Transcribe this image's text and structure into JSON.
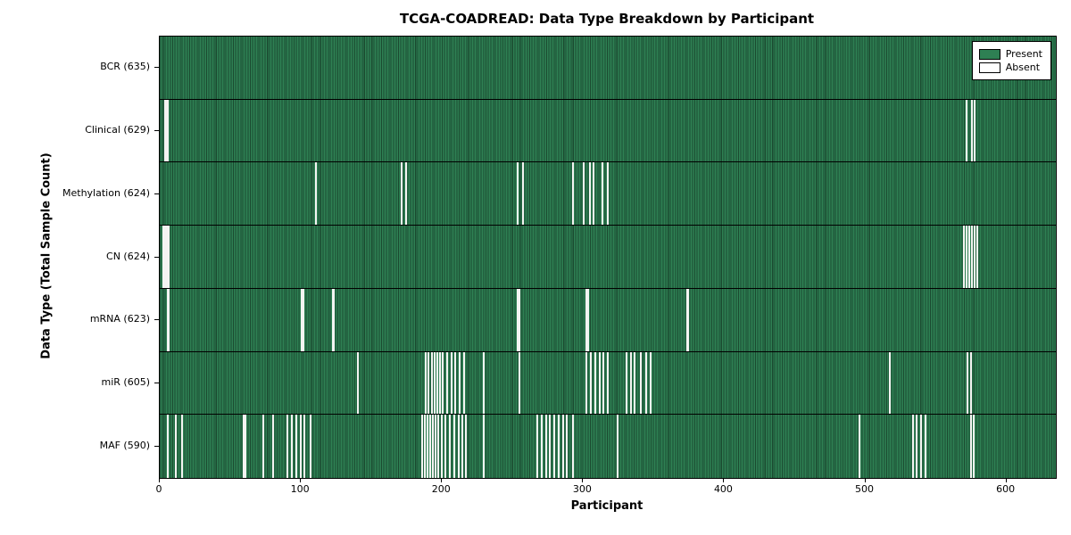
{
  "chart_data": {
    "type": "heatmap",
    "title": "TCGA-COADREAD: Data Type Breakdown by Participant",
    "xlabel": "Participant",
    "ylabel": "Data Type (Total Sample Count)",
    "xlim": [
      0,
      635
    ],
    "x_ticks": [
      0,
      100,
      200,
      300,
      400,
      500,
      600
    ],
    "n_participants": 635,
    "grid": false,
    "legend_position": "upper right",
    "legend": [
      {
        "label": "Present",
        "color": "#2e8053"
      },
      {
        "label": "Absent",
        "color": "#ffffff"
      }
    ],
    "rows": [
      {
        "data_type": "BCR",
        "label": "BCR (635)",
        "present_count": 635,
        "absent_participants": []
      },
      {
        "data_type": "Clinical",
        "label": "Clinical (629)",
        "present_count": 629,
        "absent_participants": [
          3,
          4,
          5,
          571,
          575,
          577
        ]
      },
      {
        "data_type": "Methylation",
        "label": "Methylation (624)",
        "present_count": 624,
        "absent_participants": [
          110,
          171,
          174,
          253,
          257,
          292,
          300,
          304,
          307,
          313,
          317
        ]
      },
      {
        "data_type": "CN",
        "label": "CN (624)",
        "present_count": 624,
        "absent_participants": [
          2,
          3,
          4,
          5,
          6,
          569,
          571,
          573,
          575,
          577,
          579
        ]
      },
      {
        "data_type": "mRNA",
        "label": "mRNA (623)",
        "present_count": 623,
        "absent_participants": [
          5,
          6,
          100,
          101,
          122,
          123,
          253,
          254,
          302,
          303,
          373,
          374
        ]
      },
      {
        "data_type": "miR",
        "label": "miR (605)",
        "present_count": 605,
        "absent_participants": [
          140,
          188,
          190,
          192,
          194,
          196,
          198,
          200,
          203,
          206,
          209,
          212,
          215,
          229,
          254,
          302,
          305,
          308,
          311,
          314,
          317,
          330,
          333,
          336,
          340,
          344,
          347,
          517,
          572,
          574
        ]
      },
      {
        "data_type": "MAF",
        "label": "MAF (590)",
        "present_count": 590,
        "absent_participants": [
          5,
          11,
          15,
          59,
          60,
          73,
          80,
          90,
          93,
          96,
          99,
          102,
          106,
          185,
          187,
          189,
          191,
          193,
          195,
          197,
          199,
          202,
          205,
          208,
          211,
          214,
          216,
          229,
          267,
          270,
          273,
          276,
          279,
          282,
          285,
          288,
          292,
          324,
          495,
          533,
          536,
          539,
          542,
          574,
          576
        ]
      }
    ]
  }
}
